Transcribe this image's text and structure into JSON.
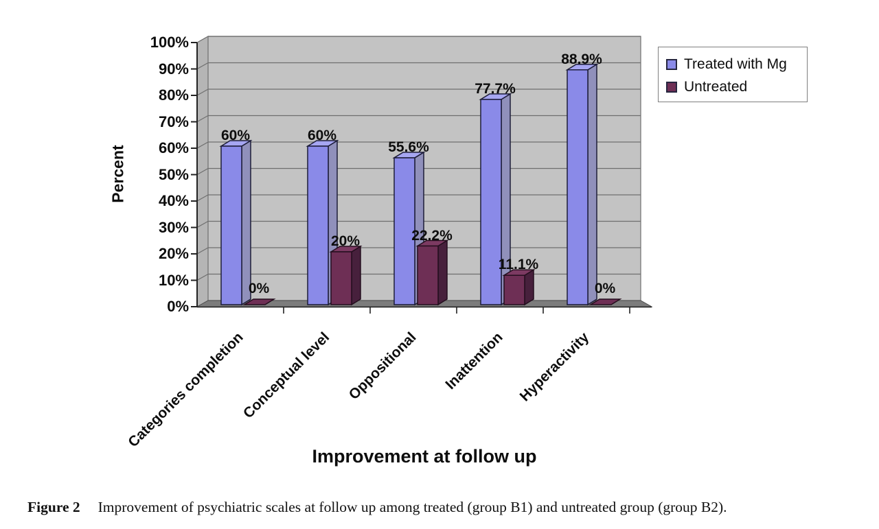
{
  "figure": {
    "caption_label": "Figure 2",
    "caption_text": "Improvement of psychiatric scales at follow up among treated (group B1) and untreated group (group B2)."
  },
  "chart_data": {
    "type": "bar",
    "effect": "3d-column",
    "title": "",
    "xlabel": "Improvement at follow up",
    "ylabel": "Percent",
    "ylim": [
      0,
      100
    ],
    "ytick_step": 10,
    "ytick_labels": [
      "0%",
      "10%",
      "20%",
      "30%",
      "40%",
      "50%",
      "60%",
      "70%",
      "80%",
      "90%",
      "100%"
    ],
    "grid": true,
    "legend_position": "top-right",
    "categories": [
      "Categories completion",
      "Conceptual level",
      "Oppositional",
      "Inattention",
      "Hyperactivity"
    ],
    "series": [
      {
        "name": "Treated with Mg",
        "color": "#8a8ae8",
        "color_top": "#a6a6f2",
        "color_side": "#9090bb",
        "edge": "#1c1c38",
        "values": [
          60,
          60,
          55.6,
          77.7,
          88.9
        ],
        "data_labels": [
          "60%",
          "60%",
          "55.6%",
          "77.7%",
          "88.9%"
        ]
      },
      {
        "name": "Untreated",
        "color": "#6e2f55",
        "color_top": "#7c3a62",
        "color_side": "#47203c",
        "edge": "#240e1e",
        "values": [
          0,
          20,
          22.2,
          11.1,
          0
        ],
        "data_labels": [
          "0%",
          "20%",
          "22.2%",
          "11.1%",
          "0%"
        ]
      }
    ],
    "wall_color": "#c3c3c3",
    "side_wall_color": "#b5b5b5",
    "floor_color": "#7c7c7c",
    "gridline_color": "#6e6e6e",
    "axis_color": "#222222"
  }
}
